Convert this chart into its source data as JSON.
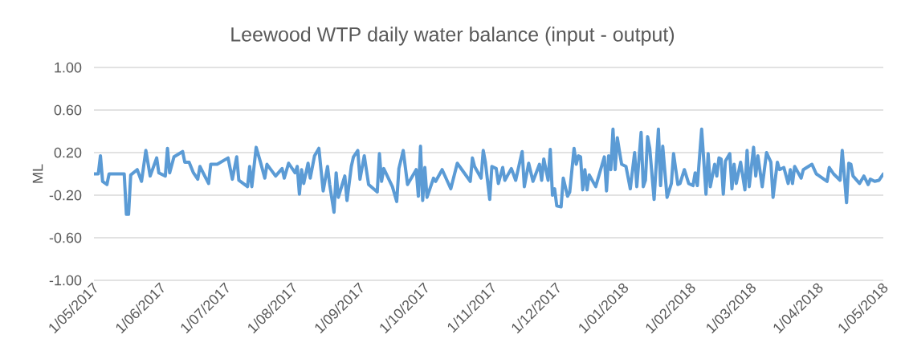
{
  "chart_data": {
    "type": "line",
    "title": "Leewood WTP daily water balance (input - output)",
    "ylabel": "ML",
    "x": [
      "2017-05-01",
      "2017-05-03",
      "2017-05-04",
      "2017-05-05",
      "2017-05-07",
      "2017-05-08",
      "2017-05-15",
      "2017-05-16",
      "2017-05-17",
      "2017-05-18",
      "2017-05-21",
      "2017-05-23",
      "2017-05-25",
      "2017-05-27",
      "2017-05-30",
      "2017-05-31",
      "2017-06-03",
      "2017-06-04",
      "2017-06-05",
      "2017-06-07",
      "2017-06-11",
      "2017-06-12",
      "2017-06-14",
      "2017-06-16",
      "2017-06-18",
      "2017-06-19",
      "2017-06-23",
      "2017-06-24",
      "2017-06-27",
      "2017-07-02",
      "2017-07-04",
      "2017-07-06",
      "2017-07-07",
      "2017-07-11",
      "2017-07-12",
      "2017-07-13",
      "2017-07-15",
      "2017-07-17",
      "2017-07-19",
      "2017-07-20",
      "2017-07-24",
      "2017-07-27",
      "2017-07-28",
      "2017-07-30",
      "2017-08-02",
      "2017-08-03",
      "2017-08-04",
      "2017-08-05",
      "2017-08-06",
      "2017-08-08",
      "2017-08-09",
      "2017-08-11",
      "2017-08-13",
      "2017-08-15",
      "2017-08-17",
      "2017-08-18",
      "2017-08-20",
      "2017-08-21",
      "2017-08-22",
      "2017-08-25",
      "2017-08-26",
      "2017-08-28",
      "2017-08-29",
      "2017-08-31",
      "2017-09-01",
      "2017-09-03",
      "2017-09-05",
      "2017-09-09",
      "2017-09-10",
      "2017-09-11",
      "2017-09-12",
      "2017-09-16",
      "2017-09-18",
      "2017-09-19",
      "2017-09-21",
      "2017-09-23",
      "2017-09-27",
      "2017-09-28",
      "2017-09-29",
      "2017-09-30",
      "2017-10-01",
      "2017-10-02",
      "2017-10-05",
      "2017-10-06",
      "2017-10-09",
      "2017-10-13",
      "2017-10-16",
      "2017-10-22",
      "2017-10-23",
      "2017-10-24",
      "2017-10-27",
      "2017-10-28",
      "2017-10-29",
      "2017-10-31",
      "2017-11-01",
      "2017-11-03",
      "2017-11-04",
      "2017-11-06",
      "2017-11-07",
      "2017-11-10",
      "2017-11-12",
      "2017-11-15",
      "2017-11-16",
      "2017-11-18",
      "2017-11-20",
      "2017-11-23",
      "2017-11-24",
      "2017-11-25",
      "2017-11-27",
      "2017-11-28",
      "2017-11-29",
      "2017-11-30",
      "2017-12-01",
      "2017-12-03",
      "2017-12-04",
      "2017-12-06",
      "2017-12-07",
      "2017-12-09",
      "2017-12-10",
      "2017-12-11",
      "2017-12-12",
      "2017-12-13",
      "2017-12-14",
      "2017-12-15",
      "2017-12-16",
      "2017-12-19",
      "2017-12-23",
      "2017-12-24",
      "2017-12-25",
      "2017-12-26",
      "2017-12-27",
      "2017-12-28",
      "2017-12-29",
      "2017-12-30",
      "2017-12-31",
      "2018-01-02",
      "2018-01-04",
      "2018-01-06",
      "2018-01-07",
      "2018-01-09",
      "2018-01-10",
      "2018-01-11",
      "2018-01-12",
      "2018-01-13",
      "2018-01-15",
      "2018-01-17",
      "2018-01-18",
      "2018-01-19",
      "2018-01-21",
      "2018-01-23",
      "2018-01-24",
      "2018-01-26",
      "2018-01-27",
      "2018-01-29",
      "2018-01-31",
      "2018-02-02",
      "2018-02-03",
      "2018-02-04",
      "2018-02-06",
      "2018-02-07",
      "2018-02-08",
      "2018-02-09",
      "2018-02-10",
      "2018-02-12",
      "2018-02-13",
      "2018-02-14",
      "2018-02-15",
      "2018-02-16",
      "2018-02-17",
      "2018-02-19",
      "2018-02-20",
      "2018-02-21",
      "2018-02-22",
      "2018-02-24",
      "2018-02-26",
      "2018-02-27",
      "2018-02-28",
      "2018-03-02",
      "2018-03-03",
      "2018-03-04",
      "2018-03-06",
      "2018-03-08",
      "2018-03-10",
      "2018-03-11",
      "2018-03-13",
      "2018-03-14",
      "2018-03-16",
      "2018-03-18",
      "2018-03-19",
      "2018-03-20",
      "2018-03-21",
      "2018-03-24",
      "2018-03-25",
      "2018-03-29",
      "2018-03-31",
      "2018-04-05",
      "2018-04-06",
      "2018-04-08",
      "2018-04-11",
      "2018-04-12",
      "2018-04-14",
      "2018-04-15",
      "2018-04-16",
      "2018-04-17",
      "2018-04-20",
      "2018-04-22",
      "2018-04-24",
      "2018-04-25",
      "2018-04-27",
      "2018-04-29",
      "2018-05-01"
    ],
    "series": [
      {
        "color": "#5b9bd5",
        "values": [
          0,
          0,
          0.17,
          -0.07,
          -0.1,
          0,
          0,
          -0.38,
          -0.38,
          -0.01,
          0.04,
          -0.07,
          0.22,
          -0.02,
          0.15,
          0.01,
          -0.02,
          0.24,
          0.01,
          0.16,
          0.21,
          0.11,
          0.11,
          0.01,
          -0.05,
          0.07,
          -0.09,
          0.09,
          0.09,
          0.15,
          -0.05,
          0.16,
          -0.06,
          -0.12,
          0.07,
          -0.12,
          0.25,
          0.11,
          -0.04,
          0.09,
          -0.02,
          0.05,
          -0.04,
          0.1,
          0.01,
          0.07,
          -0.19,
          0.04,
          -0.09,
          0.1,
          -0.04,
          0.17,
          0.24,
          -0.16,
          0.07,
          -0.1,
          -0.36,
          0.01,
          -0.22,
          -0.02,
          -0.25,
          0.07,
          0.16,
          0.22,
          -0.05,
          0.17,
          -0.1,
          -0.17,
          0.19,
          -0.07,
          0.05,
          -0.12,
          -0.26,
          0.05,
          0.22,
          -0.1,
          0.04,
          -0.21,
          0.26,
          -0.25,
          0.06,
          -0.22,
          -0.04,
          -0.07,
          0.04,
          -0.14,
          0.1,
          -0.07,
          0.15,
          0.07,
          -0.04,
          0.22,
          0.11,
          -0.24,
          0.07,
          0.05,
          -0.09,
          0.06,
          -0.06,
          0.05,
          -0.06,
          0.21,
          -0.12,
          0.1,
          -0.07,
          0.09,
          -0.06,
          0.14,
          -0.06,
          0.23,
          -0.2,
          -0.14,
          -0.3,
          -0.31,
          -0.04,
          -0.21,
          -0.17,
          0.24,
          0.09,
          0.17,
          0.16,
          -0.15,
          0.04,
          -0.15,
          -0.01,
          -0.12,
          0.16,
          -0.16,
          0.17,
          0.04,
          0.42,
          0.04,
          0.34,
          0.21,
          0.09,
          0.07,
          -0.14,
          0.2,
          -0.12,
          0.39,
          -0.12,
          -0.06,
          0.35,
          0.24,
          -0.24,
          0.42,
          -0.11,
          0.26,
          -0.22,
          -0.09,
          0.19,
          -0.1,
          -0.09,
          0.04,
          -0.09,
          -0.11,
          0.01,
          -0.11,
          0.42,
          0.12,
          -0.19,
          0.19,
          -0.12,
          0.09,
          -0.02,
          0.15,
          0.14,
          -0.19,
          0.12,
          0.19,
          -0.14,
          0.09,
          -0.09,
          0.11,
          -0.15,
          0.22,
          -0.12,
          0.25,
          -0.02,
          0.17,
          -0.12,
          0.2,
          0.11,
          -0.22,
          0.11,
          0.04,
          0.06,
          -0.09,
          0.04,
          -0.09,
          0.07,
          -0.04,
          0.04,
          0.09,
          0,
          -0.07,
          0.06,
          0,
          -0.06,
          0.22,
          -0.27,
          0.1,
          0.09,
          -0.02,
          -0.09,
          -0.02,
          -0.1,
          -0.05,
          -0.07,
          -0.06,
          0
        ]
      }
    ],
    "xlim": [
      "2017-05-01",
      "2018-05-01"
    ],
    "xticks": [
      {
        "value": "2017-05-01",
        "label": "1/05/2017"
      },
      {
        "value": "2017-06-01",
        "label": "1/06/2017"
      },
      {
        "value": "2017-07-01",
        "label": "1/07/2017"
      },
      {
        "value": "2017-08-01",
        "label": "1/08/2017"
      },
      {
        "value": "2017-09-01",
        "label": "1/09/2017"
      },
      {
        "value": "2017-10-01",
        "label": "1/10/2017"
      },
      {
        "value": "2017-11-01",
        "label": "1/11/2017"
      },
      {
        "value": "2017-12-01",
        "label": "1/12/2017"
      },
      {
        "value": "2018-01-01",
        "label": "1/01/2018"
      },
      {
        "value": "2018-02-01",
        "label": "1/02/2018"
      },
      {
        "value": "2018-03-01",
        "label": "1/03/2018"
      },
      {
        "value": "2018-04-01",
        "label": "1/04/2018"
      },
      {
        "value": "2018-05-01",
        "label": "1/05/2018"
      }
    ],
    "ylim": [
      -1,
      1
    ],
    "yticks": [
      {
        "value": -1,
        "label": "-1.00"
      },
      {
        "value": -0.6,
        "label": "-0.60"
      },
      {
        "value": -0.2,
        "label": "-0.20"
      },
      {
        "value": 0.2,
        "label": "0.20"
      },
      {
        "value": 0.6,
        "label": "0.60"
      },
      {
        "value": 1,
        "label": "1.00"
      }
    ],
    "grid": "y"
  }
}
